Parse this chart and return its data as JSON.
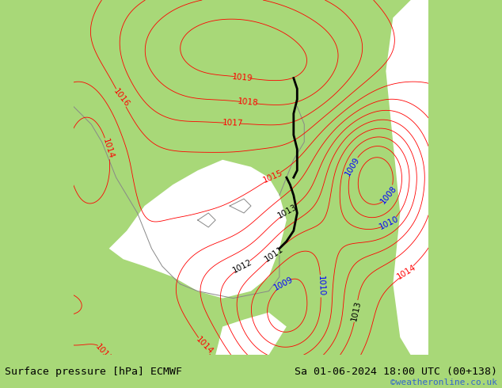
{
  "title_left": "Surface pressure [hPa] ECMWF",
  "title_right": "Sa 01-06-2024 18:00 UTC (00+138)",
  "credit": "©weatheronline.co.uk",
  "bg_color_land": "#a8d878",
  "bg_color_sea": "#ffffff",
  "contour_color_red": "#ff0000",
  "contour_color_black": "#000000",
  "contour_color_blue": "#0000ff",
  "contour_color_gray": "#888888",
  "footer_bg": "#c8e89a",
  "label_fontsize": 7.5,
  "footer_fontsize": 9.5,
  "credit_fontsize": 8,
  "credit_color": "#3366cc"
}
